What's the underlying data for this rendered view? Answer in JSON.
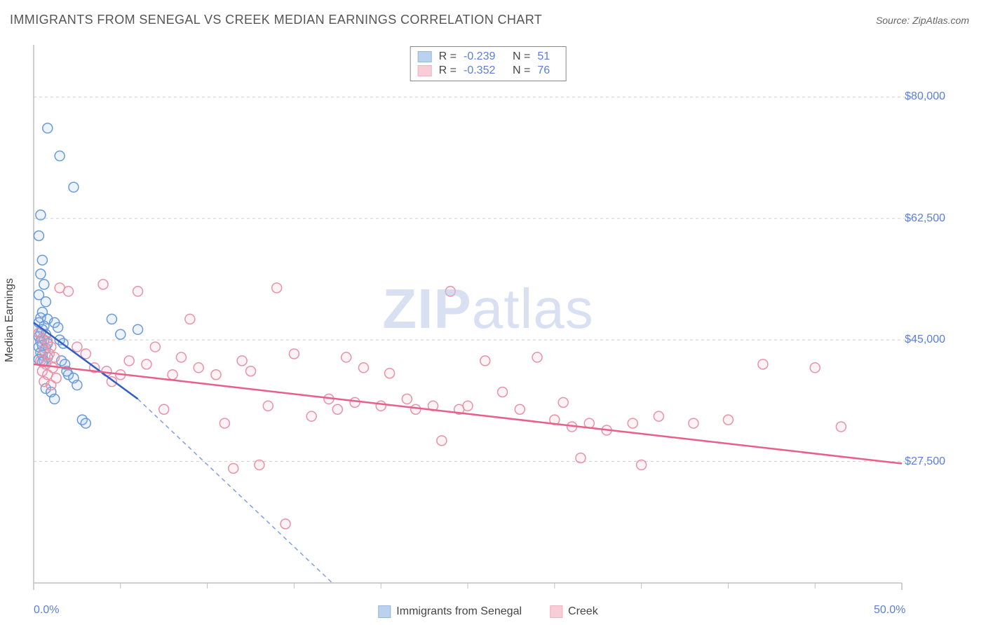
{
  "title": "IMMIGRANTS FROM SENEGAL VS CREEK MEDIAN EARNINGS CORRELATION CHART",
  "source_prefix": "Source: ",
  "source_name": "ZipAtlas.com",
  "watermark_zip": "ZIP",
  "watermark_atlas": "atlas",
  "chart": {
    "type": "scatter",
    "y_axis_label": "Median Earnings",
    "x_min": 0.0,
    "x_max": 50.0,
    "y_min": 10000,
    "y_max": 87500,
    "x_ticks_major": [
      0.0,
      50.0
    ],
    "x_tick_labels": [
      "0.0%",
      "50.0%"
    ],
    "x_ticks_minor": [
      5,
      10,
      15,
      20,
      25,
      30,
      35,
      40,
      45
    ],
    "y_gridlines": [
      27500,
      45000,
      62500,
      80000
    ],
    "y_tick_labels": [
      "$27,500",
      "$45,000",
      "$62,500",
      "$80,000"
    ],
    "background_color": "#ffffff",
    "grid_color": "#cfcfcf",
    "axis_color": "#bfbfbf",
    "marker_radius": 7,
    "marker_stroke_width": 1.5,
    "marker_fill_opacity": 0.18
  },
  "series": [
    {
      "id": "senegal",
      "label": "Immigrants from Senegal",
      "color_stroke": "#6a9ad8",
      "color_fill": "#9dbfe8",
      "trend_color": "#2e5fc9",
      "R": "-0.239",
      "N": "51",
      "trend": {
        "x1": 0.0,
        "y1": 47500,
        "x2": 6.0,
        "y2": 36500
      },
      "trend_dash": {
        "x1": 6.0,
        "y1": 36500,
        "x2": 17.2,
        "y2": 10000
      },
      "points": [
        [
          0.4,
          63000
        ],
        [
          0.3,
          60000
        ],
        [
          0.5,
          56500
        ],
        [
          0.4,
          54500
        ],
        [
          0.6,
          53000
        ],
        [
          0.3,
          51500
        ],
        [
          0.7,
          50500
        ],
        [
          0.5,
          49000
        ],
        [
          0.4,
          48200
        ],
        [
          0.8,
          48000
        ],
        [
          0.3,
          47500
        ],
        [
          0.6,
          47000
        ],
        [
          0.5,
          46500
        ],
        [
          0.4,
          46000
        ],
        [
          0.7,
          45800
        ],
        [
          0.3,
          45500
        ],
        [
          0.5,
          45200
        ],
        [
          0.6,
          45000
        ],
        [
          0.4,
          44800
        ],
        [
          0.8,
          44500
        ],
        [
          0.5,
          44200
        ],
        [
          0.3,
          44000
        ],
        [
          0.7,
          43800
        ],
        [
          0.6,
          43500
        ],
        [
          0.4,
          43200
        ],
        [
          0.5,
          42800
        ],
        [
          0.8,
          42500
        ],
        [
          0.3,
          42200
        ],
        [
          0.6,
          42000
        ],
        [
          0.5,
          41800
        ],
        [
          1.2,
          47500
        ],
        [
          1.4,
          46800
        ],
        [
          1.6,
          42000
        ],
        [
          1.8,
          41500
        ],
        [
          2.0,
          40000
        ],
        [
          2.3,
          39500
        ],
        [
          2.5,
          38500
        ],
        [
          1.5,
          45000
        ],
        [
          1.7,
          44500
        ],
        [
          1.9,
          40500
        ],
        [
          6.0,
          46500
        ],
        [
          5.0,
          45800
        ],
        [
          4.5,
          48000
        ],
        [
          2.8,
          33500
        ],
        [
          3.0,
          33000
        ],
        [
          0.7,
          38000
        ],
        [
          1.0,
          37500
        ],
        [
          1.2,
          36500
        ],
        [
          0.8,
          75500
        ],
        [
          1.5,
          71500
        ],
        [
          2.3,
          67000
        ]
      ]
    },
    {
      "id": "creek",
      "label": "Creek",
      "color_stroke": "#e892a8",
      "color_fill": "#f4b8c7",
      "trend_color": "#e86089",
      "R": "-0.352",
      "N": "76",
      "trend": {
        "x1": 0.0,
        "y1": 41500,
        "x2": 50.0,
        "y2": 27200
      },
      "points": [
        [
          0.3,
          46000
        ],
        [
          0.5,
          45200
        ],
        [
          0.8,
          44800
        ],
        [
          1.0,
          44000
        ],
        [
          0.6,
          43500
        ],
        [
          0.9,
          43000
        ],
        [
          1.2,
          42500
        ],
        [
          0.4,
          42000
        ],
        [
          0.7,
          41500
        ],
        [
          1.1,
          41000
        ],
        [
          0.5,
          40500
        ],
        [
          0.8,
          40000
        ],
        [
          1.3,
          39500
        ],
        [
          0.6,
          39000
        ],
        [
          1.0,
          38500
        ],
        [
          1.5,
          52500
        ],
        [
          2.0,
          52000
        ],
        [
          2.5,
          44000
        ],
        [
          3.0,
          43000
        ],
        [
          3.5,
          41000
        ],
        [
          4.0,
          53000
        ],
        [
          4.2,
          40500
        ],
        [
          4.5,
          39000
        ],
        [
          5.0,
          40000
        ],
        [
          5.5,
          42000
        ],
        [
          6.0,
          52000
        ],
        [
          6.5,
          41500
        ],
        [
          7.0,
          44000
        ],
        [
          7.5,
          35000
        ],
        [
          8.0,
          40000
        ],
        [
          8.5,
          42500
        ],
        [
          9.0,
          48000
        ],
        [
          9.5,
          41000
        ],
        [
          10.5,
          40000
        ],
        [
          11.0,
          33000
        ],
        [
          11.5,
          26500
        ],
        [
          12.0,
          42000
        ],
        [
          12.5,
          40500
        ],
        [
          13.0,
          27000
        ],
        [
          13.5,
          35500
        ],
        [
          14.0,
          52500
        ],
        [
          14.5,
          18500
        ],
        [
          15.0,
          43000
        ],
        [
          16.0,
          34000
        ],
        [
          17.0,
          36500
        ],
        [
          17.5,
          35000
        ],
        [
          18.0,
          42500
        ],
        [
          18.5,
          36000
        ],
        [
          19.0,
          41000
        ],
        [
          20.0,
          35500
        ],
        [
          20.5,
          40200
        ],
        [
          21.5,
          36500
        ],
        [
          22.0,
          35000
        ],
        [
          23.0,
          35500
        ],
        [
          23.5,
          30500
        ],
        [
          24.0,
          52000
        ],
        [
          24.5,
          35000
        ],
        [
          25.0,
          35500
        ],
        [
          26.0,
          42000
        ],
        [
          27.0,
          37500
        ],
        [
          28.0,
          35000
        ],
        [
          29.0,
          42500
        ],
        [
          30.0,
          33500
        ],
        [
          30.5,
          36000
        ],
        [
          31.0,
          32500
        ],
        [
          31.5,
          28000
        ],
        [
          32.0,
          33000
        ],
        [
          33.0,
          32000
        ],
        [
          34.5,
          33000
        ],
        [
          35.0,
          27000
        ],
        [
          36.0,
          34000
        ],
        [
          38.0,
          33000
        ],
        [
          40.0,
          33500
        ],
        [
          42.0,
          41500
        ],
        [
          45.0,
          41000
        ],
        [
          46.5,
          32500
        ]
      ]
    }
  ],
  "legend_stats": {
    "r_label": "R =",
    "n_label": "N ="
  }
}
